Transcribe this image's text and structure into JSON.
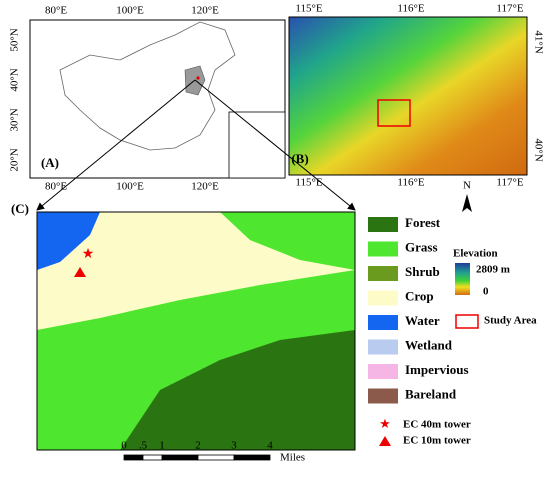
{
  "panel_a": {
    "label": "(A)",
    "lon_top": [
      "80°E",
      "100°E",
      "120°E"
    ],
    "lon_bottom": [
      "80°E",
      "100°E",
      "120°E"
    ],
    "lat": [
      "50°N",
      "40°N",
      "30°N",
      "20°N"
    ]
  },
  "panel_b": {
    "label": "(B)",
    "lon_top": [
      "115°E",
      "116°E",
      "117°E"
    ],
    "lon_bottom": [
      "115°E",
      "116°E",
      "117°E"
    ],
    "lat": [
      "41°N",
      "40°N"
    ]
  },
  "panel_c": {
    "label": "(C)"
  },
  "north": "N",
  "land_cover": [
    {
      "name": "Forest",
      "color": "#2a7512"
    },
    {
      "name": "Grass",
      "color": "#4ee62e"
    },
    {
      "name": "Shrub",
      "color": "#6a9a1e"
    },
    {
      "name": "Crop",
      "color": "#fdfbc8"
    },
    {
      "name": "Water",
      "color": "#1466f0"
    },
    {
      "name": "Wetland",
      "color": "#b9cbef"
    },
    {
      "name": "Impervious",
      "color": "#f5b6e6"
    },
    {
      "name": "Bareland",
      "color": "#8b5a4a"
    }
  ],
  "elevation": {
    "title": "Elevation",
    "max": "2809 m",
    "min": "0"
  },
  "study_area": "Study Area",
  "towers": [
    {
      "name": "EC 40m tower",
      "marker": "star"
    },
    {
      "name": "EC 10m tower",
      "marker": "triangle"
    }
  ],
  "scale_bar": {
    "ticks": [
      "0",
      ".5",
      "1",
      "2",
      "3",
      "4"
    ],
    "unit": "Miles"
  }
}
